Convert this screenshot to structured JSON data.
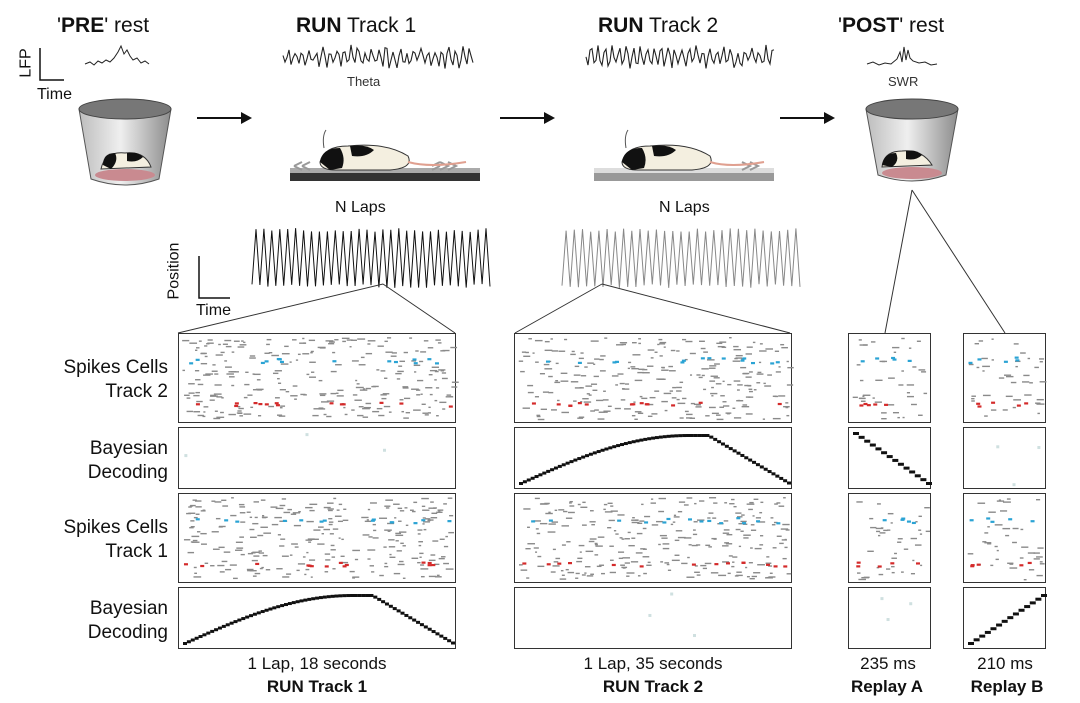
{
  "headers": {
    "pre": {
      "prefix": "'",
      "bold": "PRE",
      "suffix": "' rest"
    },
    "run1": {
      "bold": "RUN",
      "rest": " Track 1"
    },
    "run2": {
      "bold": "RUN",
      "rest": " Track 2"
    },
    "post": {
      "prefix": "'",
      "bold": "POST",
      "suffix": "' rest"
    }
  },
  "lfp_axis": {
    "y": "LFP",
    "x": "Time"
  },
  "oscillation_labels": {
    "theta": "Theta",
    "swr": "SWR"
  },
  "laps_label": "N Laps",
  "position_axis": {
    "y": "Position",
    "x": "Time"
  },
  "row_labels": {
    "spikes_track2": "Spikes Cells\nTrack 2",
    "bayes_1": "Bayesian\nDecoding",
    "spikes_track1": "Spikes Cells\nTrack 1",
    "bayes_2": "Bayesian\nDecoding"
  },
  "columns": [
    {
      "duration": "1 Lap, 18 seconds",
      "name": "RUN Track 1"
    },
    {
      "duration": "1 Lap, 35 seconds",
      "name": "RUN Track 2"
    },
    {
      "duration": "235 ms",
      "name": "Replay A"
    },
    {
      "duration": "210 ms",
      "name": "Replay B"
    }
  ],
  "colors": {
    "track1_cell": "#d42a2a",
    "track2_cell": "#2aa3d4",
    "spike": "#8a8a8a",
    "decode": "#111111",
    "arrow": "#111111"
  }
}
